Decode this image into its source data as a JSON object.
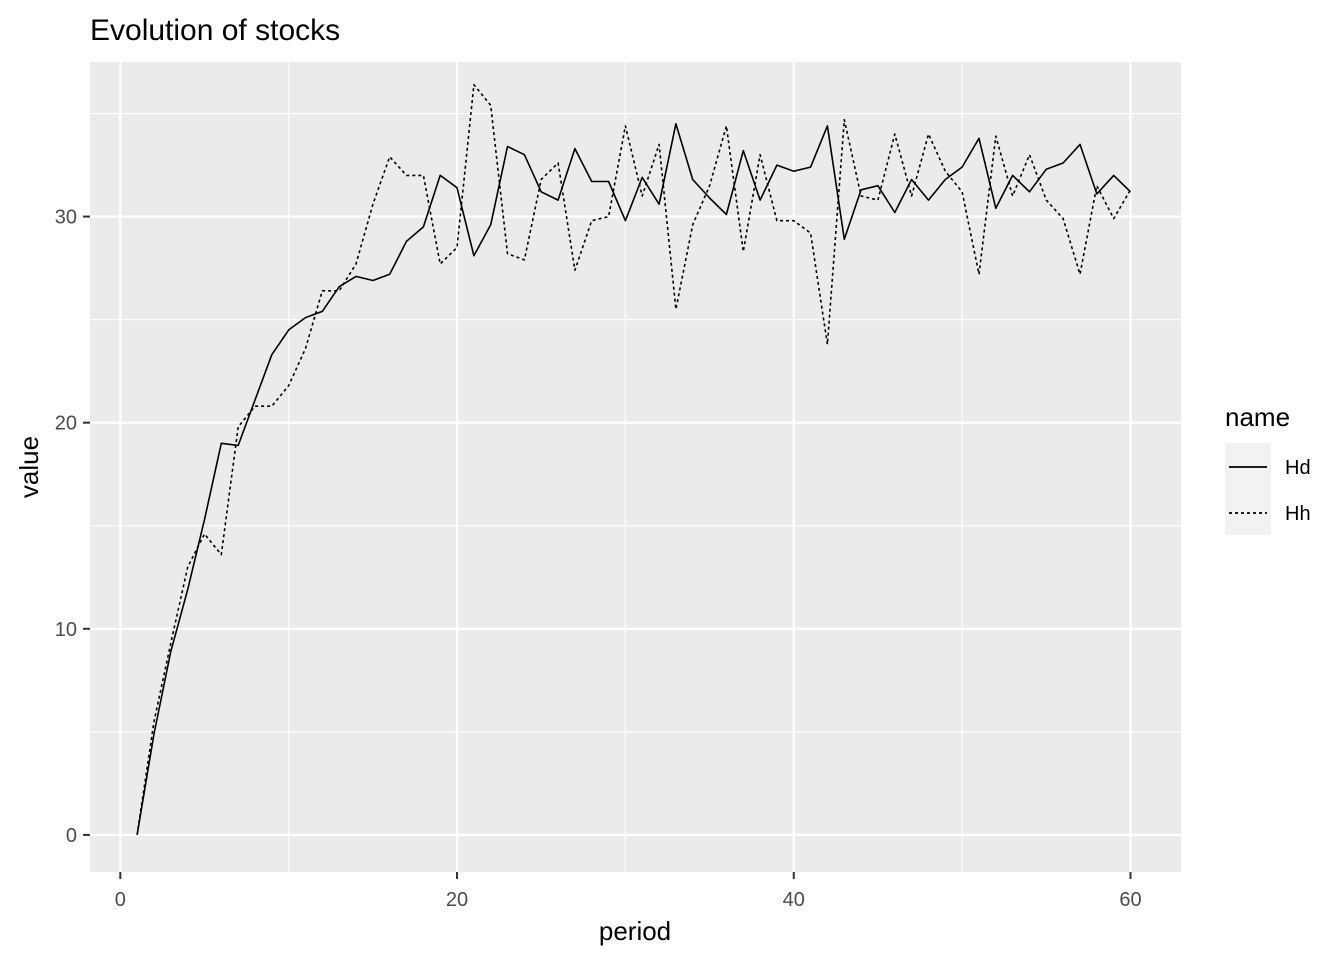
{
  "chart_data": {
    "type": "line",
    "title": "Evolution of stocks",
    "xlabel": "period",
    "ylabel": "value",
    "xlim": [
      -1.8,
      63
    ],
    "ylim": [
      -1.8,
      37.5
    ],
    "x_ticks": [
      0,
      20,
      40,
      60
    ],
    "y_ticks": [
      0,
      10,
      20,
      30
    ],
    "x_tick_labels": [
      "0",
      "20",
      "40",
      "60"
    ],
    "y_tick_labels": [
      "0",
      "10",
      "20",
      "30"
    ],
    "grid": true,
    "panel_background": "#ebebeb",
    "grid_color": "#ffffff",
    "legend": {
      "title": "name",
      "position": "right"
    },
    "x": [
      1,
      2,
      3,
      4,
      5,
      6,
      7,
      8,
      9,
      10,
      11,
      12,
      13,
      14,
      15,
      16,
      17,
      18,
      19,
      20,
      21,
      22,
      23,
      24,
      25,
      26,
      27,
      28,
      29,
      30,
      31,
      32,
      33,
      34,
      35,
      36,
      37,
      38,
      39,
      40,
      41,
      42,
      43,
      44,
      45,
      46,
      47,
      48,
      49,
      50,
      51,
      52,
      53,
      54,
      55,
      56,
      57,
      58,
      59,
      60
    ],
    "series": [
      {
        "name": "Hd",
        "linetype": "solid",
        "color": "#000000",
        "values": [
          0,
          4.9,
          8.9,
          11.9,
          15.3,
          19.0,
          18.9,
          21.1,
          23.3,
          24.5,
          25.1,
          25.4,
          26.6,
          27.1,
          26.9,
          27.2,
          28.8,
          29.5,
          32.0,
          31.4,
          28.1,
          29.6,
          33.4,
          33.0,
          31.2,
          30.8,
          33.3,
          31.7,
          31.7,
          29.8,
          31.9,
          30.6,
          34.5,
          31.8,
          30.9,
          30.1,
          33.2,
          30.8,
          32.5,
          32.2,
          32.4,
          34.4,
          28.9,
          31.3,
          31.5,
          30.2,
          31.8,
          30.8,
          31.8,
          32.4,
          33.8,
          30.4,
          32.0,
          31.2,
          32.3,
          32.6,
          33.5,
          31.1,
          32.0,
          31.2
        ]
      },
      {
        "name": "Hh",
        "linetype": "dashed",
        "color": "#000000",
        "values": [
          0,
          5.5,
          9.3,
          13.0,
          14.6,
          13.6,
          19.8,
          20.8,
          20.8,
          21.8,
          23.6,
          26.4,
          26.4,
          27.7,
          30.6,
          32.9,
          32.0,
          32.0,
          27.7,
          28.5,
          36.4,
          35.4,
          28.2,
          27.9,
          31.8,
          32.6,
          27.4,
          29.8,
          30.0,
          34.4,
          31.0,
          33.5,
          25.5,
          29.6,
          31.5,
          34.4,
          28.3,
          33.0,
          29.8,
          29.8,
          29.2,
          23.8,
          34.7,
          31.0,
          30.8,
          34.0,
          31.0,
          34.0,
          32.2,
          31.2,
          27.2,
          33.9,
          31.0,
          33.0,
          30.8,
          29.9,
          27.2,
          31.5,
          29.9,
          31.3
        ]
      }
    ]
  }
}
